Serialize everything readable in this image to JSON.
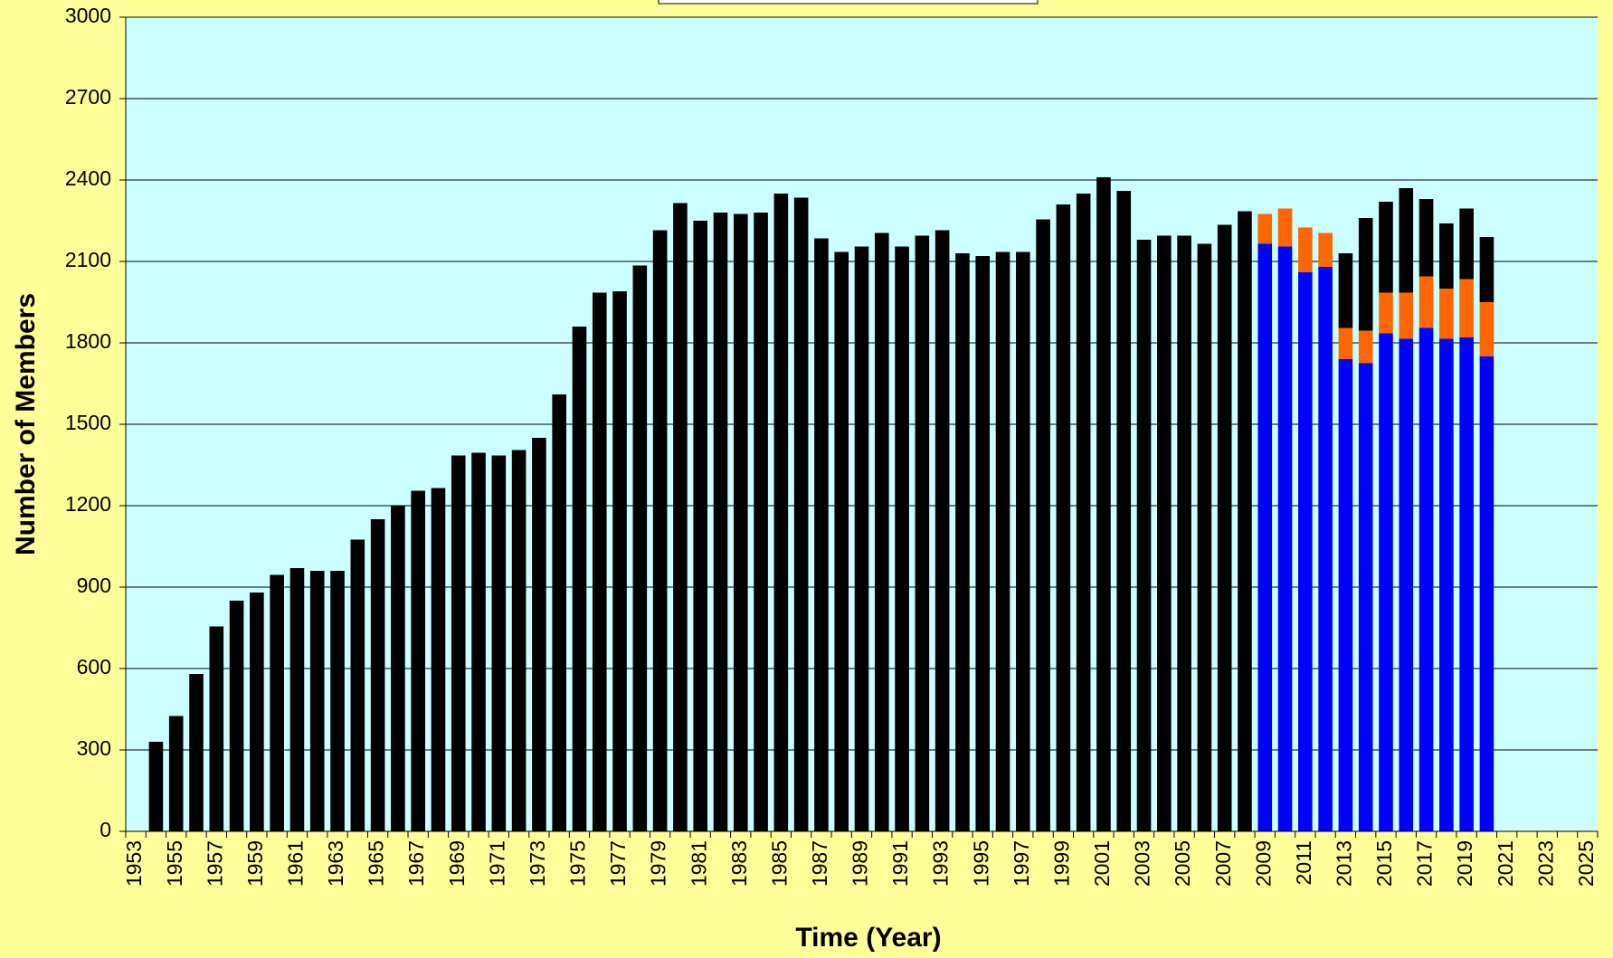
{
  "chart_data": {
    "type": "bar",
    "stacked": true,
    "y_label": "Number of Members",
    "x_label": "Time (Year)",
    "categories": [
      "1953",
      null,
      "1955",
      null,
      "1957",
      null,
      "1959",
      null,
      "1961",
      null,
      "1963",
      null,
      "1965",
      null,
      "1967",
      null,
      "1969",
      null,
      "1971",
      null,
      "1973",
      null,
      "1975",
      null,
      "1977",
      null,
      "1979",
      null,
      "1981",
      null,
      "1983",
      null,
      "1985",
      null,
      "1987",
      null,
      "1989",
      null,
      "1991",
      null,
      "1993",
      null,
      "1995",
      null,
      "1997",
      null,
      "1999",
      null,
      "2001",
      null,
      "2003",
      null,
      "2005",
      null,
      "2007",
      null,
      "2009",
      null,
      "2011",
      null,
      "2013",
      null,
      "2015",
      null,
      "2017",
      null,
      "2019",
      null,
      "2021",
      null,
      "2023",
      null,
      "2025"
    ],
    "series": [
      {
        "color": "#0000ff",
        "values": [
          null,
          null,
          null,
          null,
          null,
          null,
          null,
          null,
          null,
          null,
          null,
          null,
          null,
          null,
          null,
          null,
          null,
          null,
          null,
          null,
          null,
          null,
          null,
          null,
          null,
          null,
          null,
          null,
          null,
          null,
          null,
          null,
          null,
          null,
          null,
          null,
          null,
          null,
          null,
          null,
          null,
          null,
          null,
          null,
          null,
          null,
          null,
          null,
          null,
          null,
          null,
          null,
          null,
          null,
          null,
          null,
          2165,
          2155,
          2060,
          2080,
          1740,
          1725,
          1835,
          1815,
          1855,
          1815,
          1820,
          1750,
          null,
          null,
          null,
          null,
          null
        ]
      },
      {
        "color": "#ff6600",
        "values": [
          null,
          null,
          null,
          null,
          null,
          null,
          null,
          null,
          null,
          null,
          null,
          null,
          null,
          null,
          null,
          null,
          null,
          null,
          null,
          null,
          null,
          null,
          null,
          null,
          null,
          null,
          null,
          null,
          null,
          null,
          null,
          null,
          null,
          null,
          null,
          null,
          null,
          null,
          null,
          null,
          null,
          null,
          null,
          null,
          null,
          null,
          null,
          null,
          null,
          null,
          null,
          null,
          null,
          null,
          null,
          null,
          110,
          140,
          165,
          125,
          115,
          120,
          150,
          170,
          190,
          185,
          215,
          200,
          null,
          null,
          null,
          null,
          null
        ]
      },
      {
        "color": "#000000",
        "values": [
          null,
          330,
          425,
          580,
          755,
          850,
          880,
          945,
          970,
          960,
          960,
          1075,
          1150,
          1200,
          1255,
          1265,
          1385,
          1395,
          1385,
          1405,
          1450,
          1610,
          1860,
          1985,
          1990,
          2085,
          2215,
          2315,
          2250,
          2280,
          2275,
          2280,
          2350,
          2335,
          2185,
          2135,
          2155,
          2205,
          2155,
          2195,
          2215,
          2130,
          2120,
          2135,
          2135,
          2255,
          2310,
          2350,
          2410,
          2360,
          2180,
          2195,
          2195,
          2165,
          2235,
          2285,
          null,
          null,
          null,
          null,
          275,
          415,
          335,
          385,
          285,
          240,
          260,
          240,
          null,
          null,
          null,
          null,
          null
        ]
      }
    ],
    "ylim": [
      0,
      3000
    ],
    "yticks": [
      0,
      300,
      600,
      900,
      1200,
      1500,
      1800,
      2100,
      2400,
      2700,
      3000
    ],
    "grid": true
  }
}
